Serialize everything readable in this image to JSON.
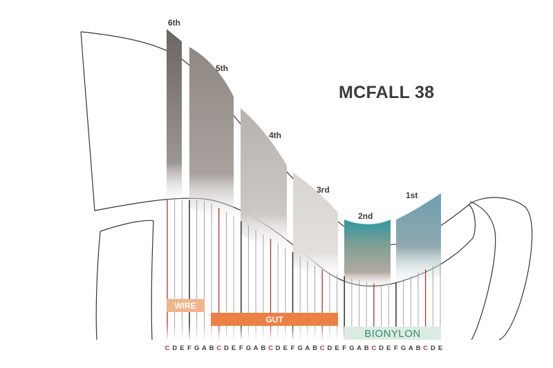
{
  "title": "MCFALL 38",
  "octaves": [
    {
      "label": "6th",
      "color": "#6e6966"
    },
    {
      "label": "5th",
      "color": "#9a928d"
    },
    {
      "label": "4th",
      "color": "#bdb7b3"
    },
    {
      "label": "3rd",
      "color": "#d8d3cf"
    },
    {
      "label": "2nd",
      "color": "#3a9aa6"
    },
    {
      "label": "1st",
      "color": "#7aa3b3"
    }
  ],
  "materials": [
    {
      "label": "WIRE",
      "color": "#f2b48a"
    },
    {
      "label": "GUT",
      "color": "#ec8145"
    },
    {
      "label": "BIONYLON",
      "color": "#dcebe2",
      "text_color": "#2f8c6f"
    }
  ],
  "notes": [
    "C",
    "D",
    "E",
    "F",
    "G",
    "A",
    "B",
    "C",
    "D",
    "E",
    "F",
    "G",
    "A",
    "B",
    "C",
    "D",
    "E",
    "F",
    "G",
    "A",
    "B",
    "C",
    "D",
    "E",
    "F",
    "G",
    "A",
    "B",
    "C",
    "D",
    "E",
    "F",
    "G",
    "A",
    "B",
    "C",
    "D",
    "E"
  ],
  "colors": {
    "c_string": "#b0322c",
    "f_string": "#3a3a3a",
    "other_string": "#9a9a9a",
    "outline": "#333333"
  }
}
